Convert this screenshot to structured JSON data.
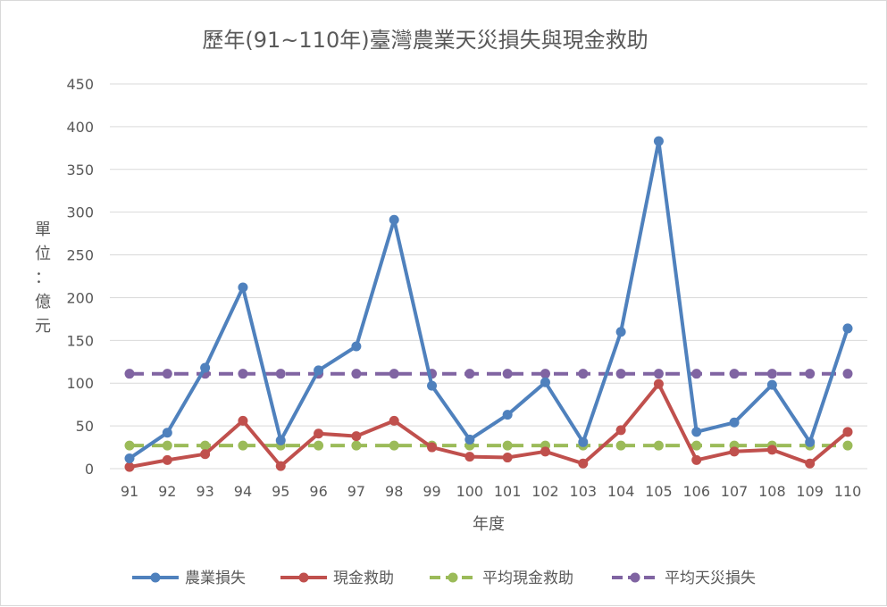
{
  "chart_data": {
    "type": "line",
    "title": "歷年(91~110年)臺灣農業天災損失與現金救助",
    "xlabel": "年度",
    "ylabel": "單位：億元",
    "ylim": [
      0,
      450
    ],
    "ytick_step": 50,
    "grid": true,
    "legend_position": "bottom",
    "categories": [
      "91",
      "92",
      "93",
      "94",
      "95",
      "96",
      "97",
      "98",
      "99",
      "100",
      "101",
      "102",
      "103",
      "104",
      "105",
      "106",
      "107",
      "108",
      "109",
      "110"
    ],
    "series": [
      {
        "name": "農業損失",
        "color": "#4f81bd",
        "dashed": false,
        "values": [
          12,
          42,
          118,
          212,
          33,
          115,
          143,
          291,
          97,
          34,
          63,
          101,
          31,
          160,
          383,
          43,
          54,
          98,
          31,
          164
        ]
      },
      {
        "name": "現金救助",
        "color": "#c0504d",
        "dashed": false,
        "values": [
          2,
          10,
          17,
          56,
          3,
          41,
          38,
          56,
          25,
          14,
          13,
          20,
          6,
          45,
          99,
          10,
          20,
          22,
          6,
          43
        ]
      },
      {
        "name": "平均現金救助",
        "color": "#9bbb59",
        "dashed": true,
        "values": [
          27,
          27,
          27,
          27,
          27,
          27,
          27,
          27,
          27,
          27,
          27,
          27,
          27,
          27,
          27,
          27,
          27,
          27,
          27,
          27
        ]
      },
      {
        "name": "平均天災損失",
        "color": "#8064a2",
        "dashed": true,
        "values": [
          111,
          111,
          111,
          111,
          111,
          111,
          111,
          111,
          111,
          111,
          111,
          111,
          111,
          111,
          111,
          111,
          111,
          111,
          111,
          111
        ]
      }
    ]
  }
}
